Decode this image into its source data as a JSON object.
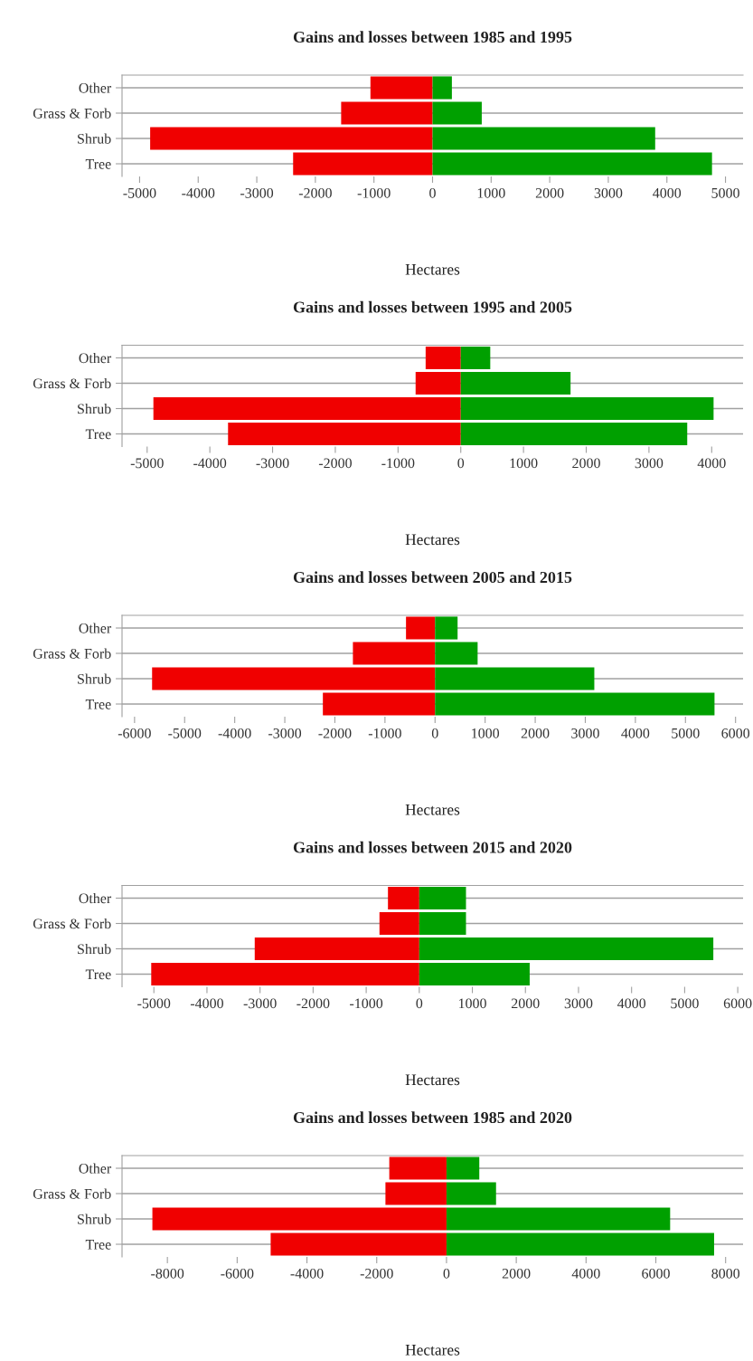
{
  "chart_data": [
    {
      "type": "bar",
      "orientation": "horizontal",
      "stacked": true,
      "title": "Gains and losses between 1985 and 1995",
      "xlabel": "Hectares",
      "categories": [
        "Other",
        "Grass & Forb",
        "Shrub",
        "Tree"
      ],
      "series": [
        {
          "color": "#f00000",
          "values": [
            -1060,
            -1560,
            -4820,
            -2380
          ]
        },
        {
          "color": "#00a000",
          "values": [
            330,
            840,
            3800,
            4770
          ]
        }
      ],
      "xlim": [
        -5300,
        5300
      ],
      "xticks": [
        -5000,
        -4000,
        -3000,
        -2000,
        -1000,
        0,
        1000,
        2000,
        3000,
        4000,
        5000
      ],
      "grid": "y"
    },
    {
      "type": "bar",
      "orientation": "horizontal",
      "stacked": true,
      "title": "Gains and losses between 1995 and 2005",
      "xlabel": "Hectares",
      "categories": [
        "Other",
        "Grass & Forb",
        "Shrub",
        "Tree"
      ],
      "series": [
        {
          "color": "#f00000",
          "values": [
            -560,
            -720,
            -4900,
            -3710
          ]
        },
        {
          "color": "#00a000",
          "values": [
            470,
            1750,
            4030,
            3610
          ]
        }
      ],
      "xlim": [
        -5400,
        4500
      ],
      "xticks": [
        -5000,
        -4000,
        -3000,
        -2000,
        -1000,
        0,
        1000,
        2000,
        3000,
        4000
      ],
      "grid": "y"
    },
    {
      "type": "bar",
      "orientation": "horizontal",
      "stacked": true,
      "title": "Gains and losses between 2005 and 2015",
      "xlabel": "Hectares",
      "categories": [
        "Other",
        "Grass & Forb",
        "Shrub",
        "Tree"
      ],
      "series": [
        {
          "color": "#f00000",
          "values": [
            -580,
            -1640,
            -5650,
            -2240
          ]
        },
        {
          "color": "#00a000",
          "values": [
            450,
            850,
            3180,
            5580
          ]
        }
      ],
      "xlim": [
        -6250,
        6150
      ],
      "xticks": [
        -6000,
        -5000,
        -4000,
        -3000,
        -2000,
        -1000,
        0,
        1000,
        2000,
        3000,
        4000,
        5000,
        6000
      ],
      "grid": "y"
    },
    {
      "type": "bar",
      "orientation": "horizontal",
      "stacked": true,
      "title": "Gains and losses between 2015 and 2020",
      "xlabel": "Hectares",
      "categories": [
        "Other",
        "Grass & Forb",
        "Shrub",
        "Tree"
      ],
      "series": [
        {
          "color": "#f00000",
          "values": [
            -590,
            -750,
            -3100,
            -5050
          ]
        },
        {
          "color": "#00a000",
          "values": [
            880,
            880,
            5540,
            2080
          ]
        }
      ],
      "xlim": [
        -5600,
        6100
      ],
      "xticks": [
        -5000,
        -4000,
        -3000,
        -2000,
        -1000,
        0,
        1000,
        2000,
        3000,
        4000,
        5000,
        6000
      ],
      "grid": "y"
    },
    {
      "type": "bar",
      "orientation": "horizontal",
      "stacked": true,
      "title": "Gains and losses between 1985 and 2020",
      "xlabel": "Hectares",
      "categories": [
        "Other",
        "Grass & Forb",
        "Shrub",
        "Tree"
      ],
      "series": [
        {
          "color": "#f00000",
          "values": [
            -1640,
            -1750,
            -8430,
            -5040
          ]
        },
        {
          "color": "#00a000",
          "values": [
            940,
            1420,
            6410,
            7670
          ]
        }
      ],
      "xlim": [
        -9300,
        8500
      ],
      "xticks": [
        -8000,
        -6000,
        -4000,
        -2000,
        0,
        2000,
        4000,
        6000,
        8000
      ],
      "grid": "y"
    }
  ]
}
